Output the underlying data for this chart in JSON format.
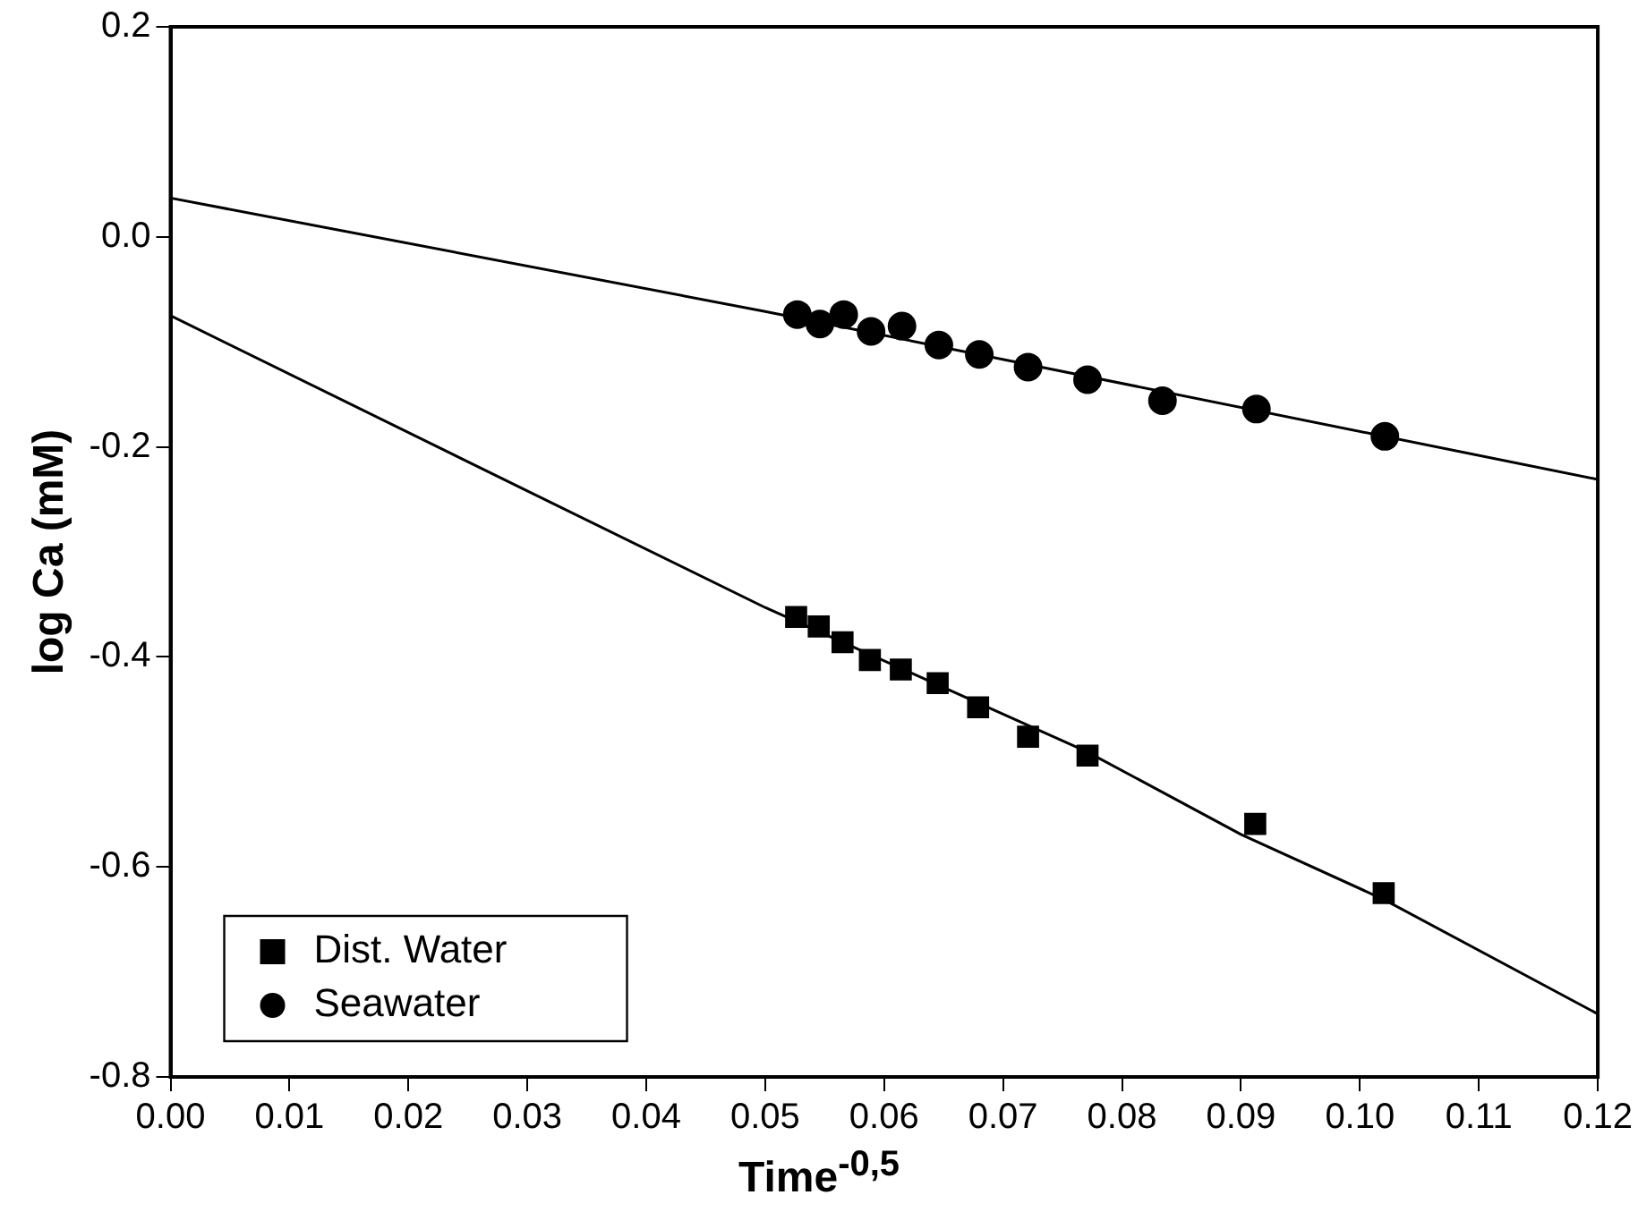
{
  "chart_data": {
    "type": "scatter",
    "xlabel": "Time$^{-0,5}$",
    "ylabel": "log Ca (mM)",
    "xlim": [
      0,
      0.12
    ],
    "xticks": [
      {
        "value": 0,
        "label": "0.00"
      },
      {
        "value": 0.01,
        "label": "0.01"
      },
      {
        "value": 0.02,
        "label": "0.02"
      },
      {
        "value": 0.03,
        "label": "0.03"
      },
      {
        "value": 0.04,
        "label": "0.04"
      },
      {
        "value": 0.05,
        "label": "0.05"
      },
      {
        "value": 0.06,
        "label": "0.06"
      },
      {
        "value": 0.07,
        "label": "0.07"
      },
      {
        "value": 0.08,
        "label": "0.08"
      },
      {
        "value": 0.09,
        "label": "0.09"
      },
      {
        "value": 0.1,
        "label": "0.10"
      },
      {
        "value": 0.11,
        "label": "0.11"
      },
      {
        "value": 0.12,
        "label": "0.12"
      }
    ],
    "ylim": [
      -0.8,
      0.2
    ],
    "yticks": [
      -0.8,
      -0.6,
      -0.4,
      -0.2,
      {
        "value": 0,
        "label": "0.0"
      },
      0.2
    ],
    "grid": false,
    "legend": "bottom left",
    "series": [
      {
        "name": "Dist. Water",
        "marker": "square",
        "color": "#000000",
        "x": [
          0.0526,
          0.0545,
          0.0565,
          0.0588,
          0.0614,
          0.0645,
          0.0679,
          0.0721,
          0.0771,
          0.0912,
          0.102
        ],
        "values": [
          -0.362,
          -0.371,
          -0.386,
          -0.403,
          -0.412,
          -0.425,
          -0.448,
          -0.476,
          -0.494,
          -0.559,
          -0.625
        ]
      },
      {
        "name": "Seawater",
        "marker": "circle",
        "color": "#000000",
        "x": [
          0.0527,
          0.0546,
          0.0566,
          0.0589,
          0.0615,
          0.0646,
          0.068,
          0.0721,
          0.0771,
          0.0834,
          0.0913,
          0.1021
        ],
        "values": [
          -0.074,
          -0.083,
          -0.074,
          -0.09,
          -0.085,
          -0.103,
          -0.112,
          -0.124,
          -0.136,
          -0.156,
          -0.164,
          -0.19
        ]
      },
      {
        "type": "line",
        "marker": "none",
        "color": "#000000",
        "x": [
          0,
          0.03,
          0.05,
          0.077,
          0.09,
          0.102,
          0.12
        ],
        "values": [
          -0.075,
          -0.242,
          -0.353,
          -0.49,
          -0.569,
          -0.631,
          -0.74
        ]
      },
      {
        "type": "line",
        "marker": "none",
        "color": "#000000",
        "x": [
          0,
          0.05,
          0.12
        ],
        "values": [
          0.037,
          -0.071,
          -0.231
        ]
      }
    ]
  }
}
